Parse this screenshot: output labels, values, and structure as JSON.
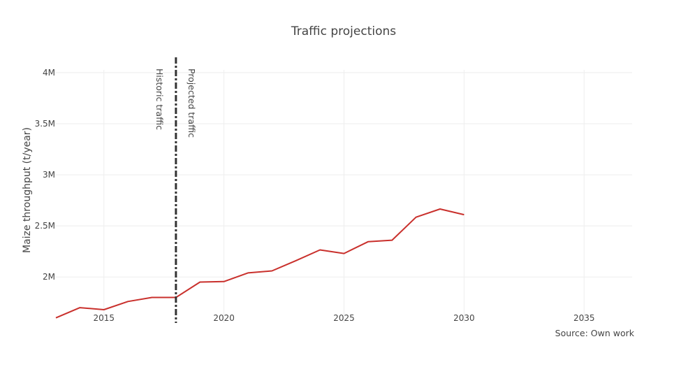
{
  "chart_data": {
    "type": "line",
    "title": "Traffic projections",
    "xlabel": "",
    "ylabel": "Maize throughput (t/year)",
    "xlim": [
      2013,
      2037
    ],
    "ylim": [
      1550000,
      4150000
    ],
    "x_ticks": [
      2015,
      2020,
      2025,
      2030,
      2035
    ],
    "y_ticks": [
      2000000,
      2500000,
      3000000,
      3500000,
      4000000
    ],
    "y_tick_labels": [
      "2M",
      "2.5M",
      "3M",
      "3.5M",
      "4M"
    ],
    "grid": true,
    "series": [
      {
        "color": "#c9302c",
        "x": [
          2013,
          2014,
          2015,
          2016,
          2017,
          2018,
          2019,
          2020,
          2021,
          2022,
          2023,
          2024,
          2025,
          2026,
          2027,
          2028,
          2029,
          2030
        ],
        "y": [
          1600000,
          1700000,
          1680000,
          1760000,
          1800000,
          1800000,
          1950000,
          1955000,
          2040000,
          2060000,
          2160000,
          2265000,
          2230000,
          2345000,
          2360000,
          2585000,
          2665000,
          2610000
        ]
      }
    ],
    "divider": {
      "x": 2018,
      "color": "#333333",
      "style": "dashdot"
    },
    "annotations": {
      "left": "Historic traffic",
      "right": "Projected traffic"
    },
    "source": "Source: Own work"
  }
}
